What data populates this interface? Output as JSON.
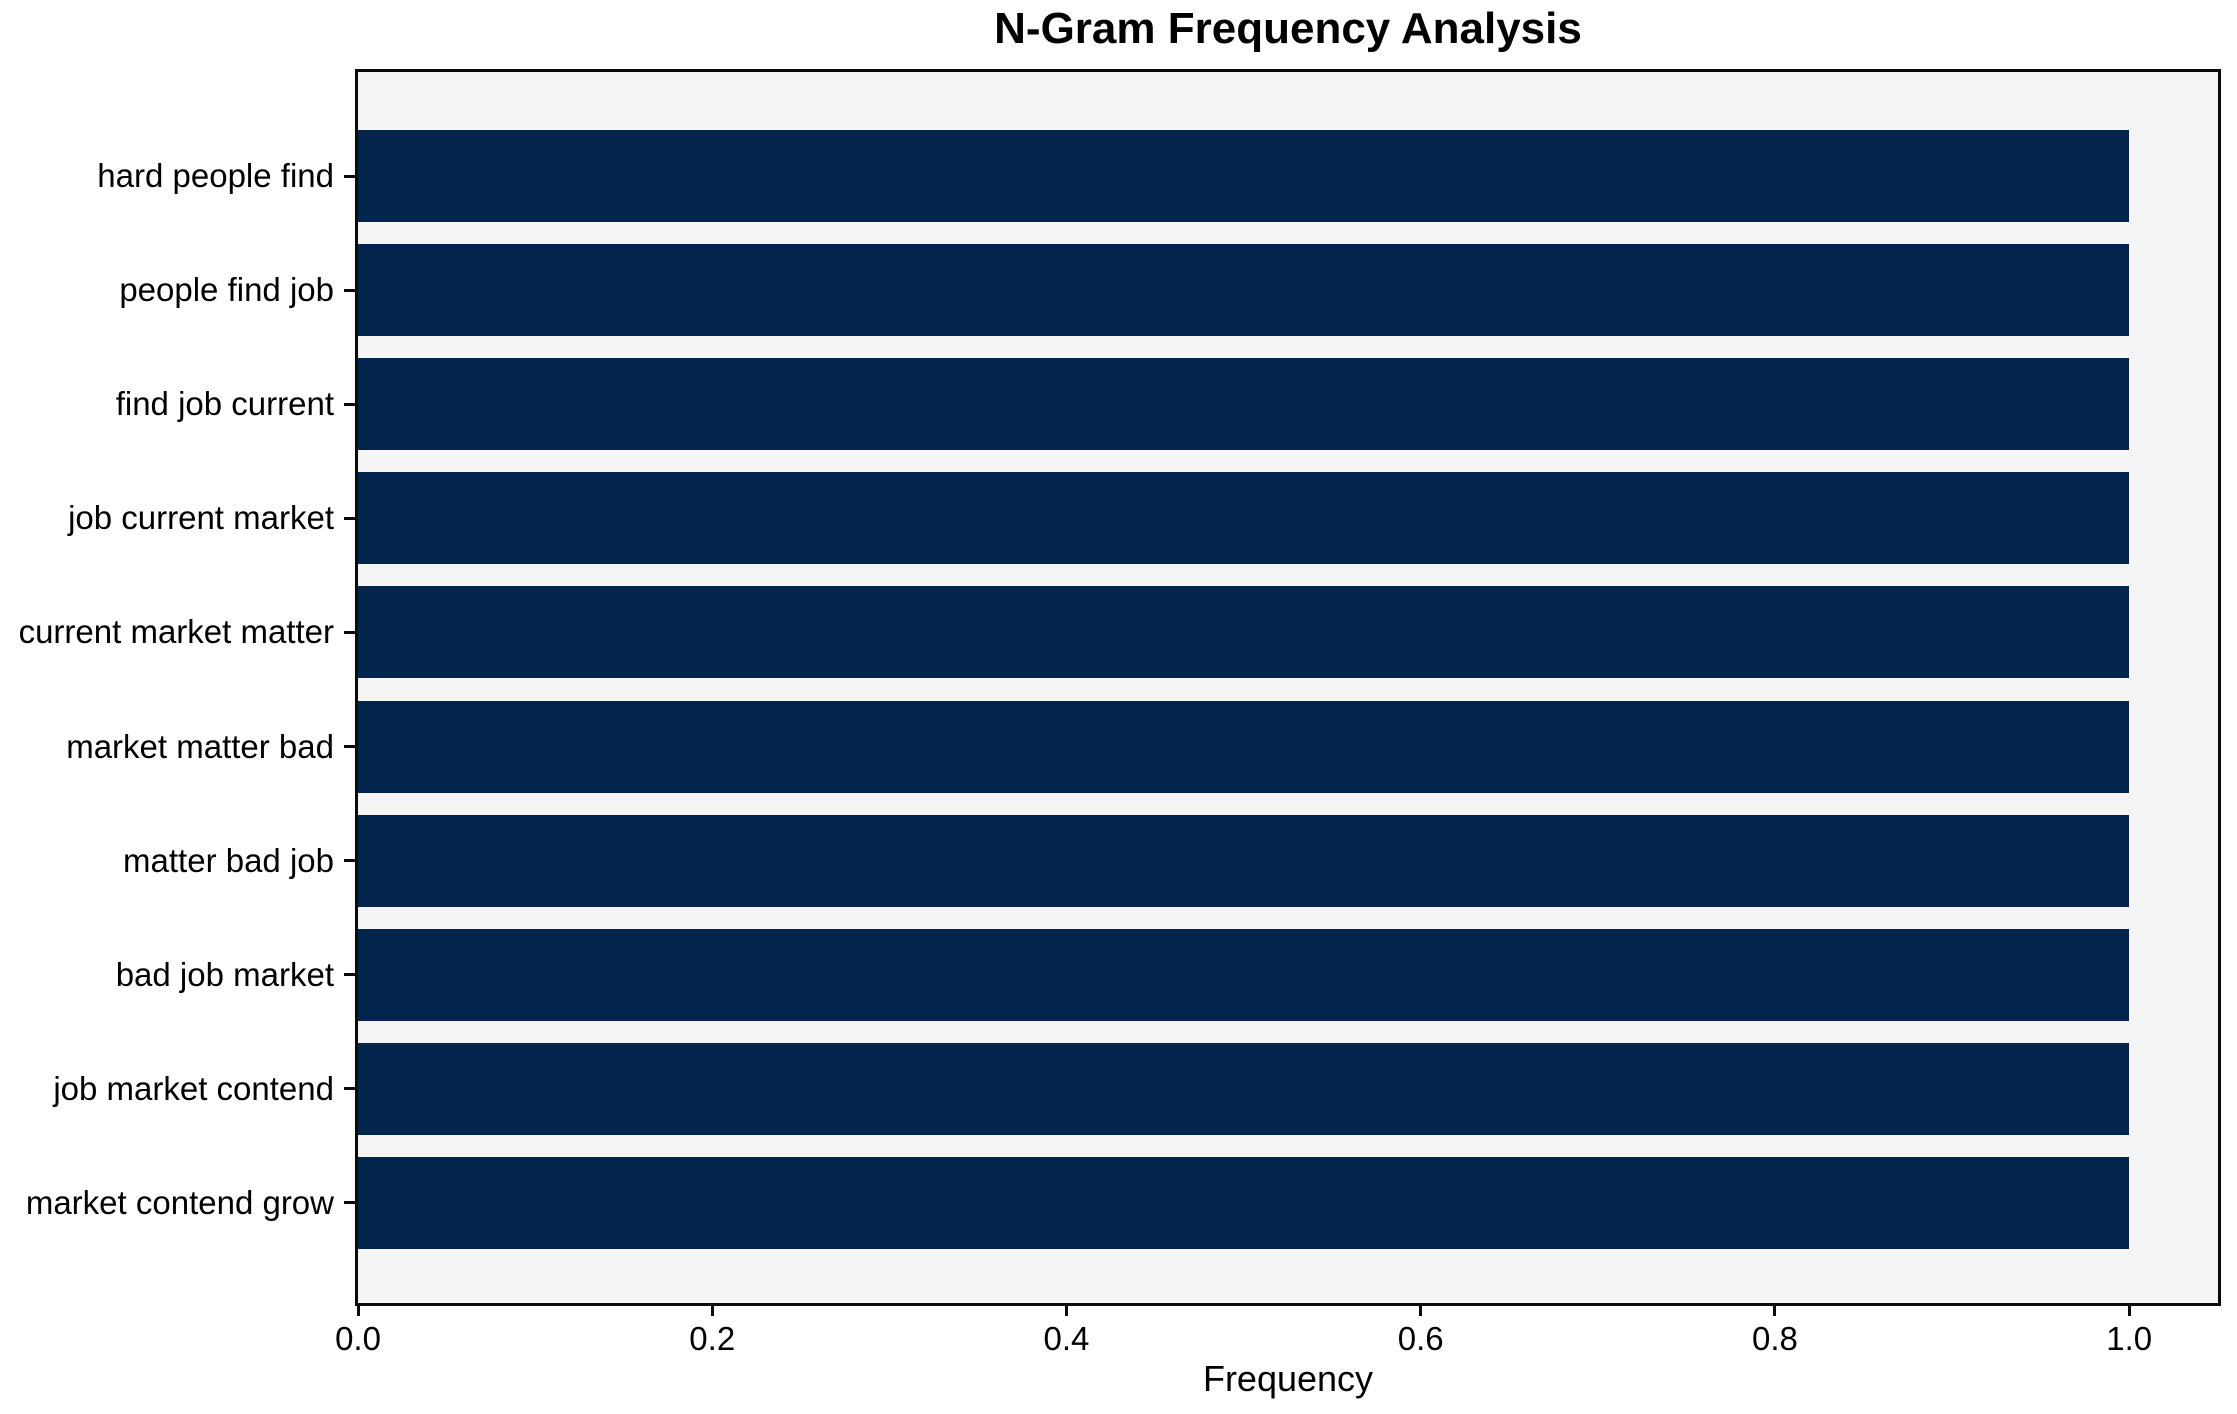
{
  "chart_data": {
    "type": "bar",
    "orientation": "horizontal",
    "title": "N-Gram Frequency Analysis",
    "xlabel": "Frequency",
    "ylabel": "",
    "categories": [
      "hard people find",
      "people find job",
      "find job current",
      "job current market",
      "current market matter",
      "market matter bad",
      "matter bad job",
      "bad job market",
      "job market contend",
      "market contend grow"
    ],
    "values": [
      1.0,
      1.0,
      1.0,
      1.0,
      1.0,
      1.0,
      1.0,
      1.0,
      1.0,
      1.0
    ],
    "xlim": [
      0.0,
      1.05
    ],
    "xticks": [
      0.0,
      0.2,
      0.4,
      0.6,
      0.8,
      1.0
    ],
    "xtick_labels": [
      "0.0",
      "0.2",
      "0.4",
      "0.6",
      "0.8",
      "1.0"
    ],
    "grid": false,
    "legend": null,
    "colors": {
      "bar": "#03244d",
      "plot_background": "#f5f5f6",
      "figure_background": "#ffffff",
      "spine": "#0a0a0a",
      "text": "#000000"
    }
  }
}
